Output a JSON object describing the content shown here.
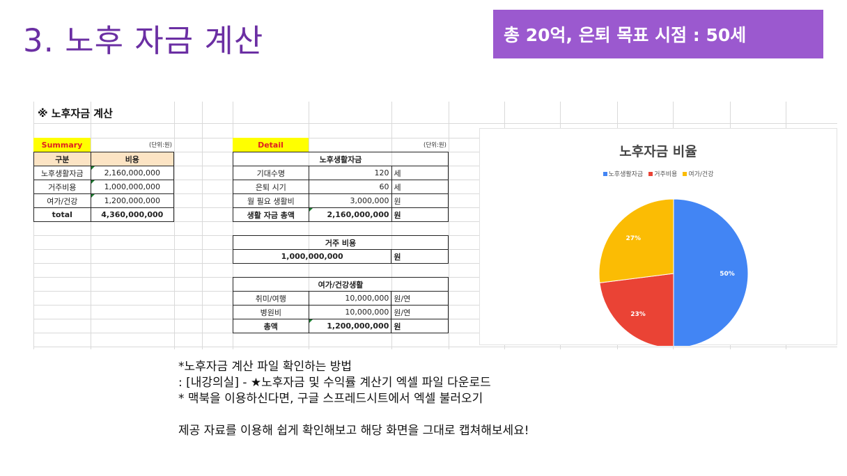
{
  "slide": {
    "title": "3. 노후 자금 계산",
    "badge": "총 20억, 은퇴 목표 시점  : 50세"
  },
  "sheet": {
    "heading": "※ 노후자금 계산",
    "summary": {
      "tag": "Summary",
      "unit": "(단위:원)",
      "headers": [
        "구분",
        "비용"
      ],
      "rows": [
        {
          "label": "노후생활자금",
          "value": "2,160,000,000"
        },
        {
          "label": "거주비용",
          "value": "1,000,000,000"
        },
        {
          "label": "여가/건강",
          "value": "1,200,000,000"
        },
        {
          "label": "total",
          "value": "4,360,000,000"
        }
      ]
    },
    "detail": {
      "tag": "Detail",
      "unit": "(단위:원)",
      "living": {
        "title": "노후생활자금",
        "rows": [
          {
            "label": "기대수명",
            "value": "120",
            "unit": "세"
          },
          {
            "label": "은퇴 시기",
            "value": "60",
            "unit": "세"
          },
          {
            "label": "월 필요 생활비",
            "value": "3,000,000",
            "unit": "원"
          },
          {
            "label": "생활 자금 총액",
            "value": "2,160,000,000",
            "unit": "원"
          }
        ]
      },
      "housing": {
        "title": "거주 비용",
        "value": "1,000,000,000",
        "unit": "원"
      },
      "leisure": {
        "title": "여가/건강생활",
        "rows": [
          {
            "label": "취미/여행",
            "value": "10,000,000",
            "unit": "원/연"
          },
          {
            "label": "병원비",
            "value": "10,000,000",
            "unit": "원/연"
          },
          {
            "label": "총액",
            "value": "1,200,000,000",
            "unit": "원"
          }
        ]
      }
    }
  },
  "chart_data": {
    "type": "pie",
    "title": "노후자금 비율",
    "legend_position": "top",
    "categories": [
      "노후생활자금",
      "거주비용",
      "여가/건강"
    ],
    "values": [
      50,
      23,
      27
    ],
    "labels": [
      "50%",
      "23%",
      "27%"
    ],
    "colors": [
      "#4285f4",
      "#ea4335",
      "#fbbc04"
    ]
  },
  "notes": {
    "line1": "*노후자금 계산 파일 확인하는 방법",
    "line2": ": [내강의실] - ★노후자금 및 수익률 계산기 엑셀 파일 다운로드",
    "line3": "* 맥북을 이용하신다면, 구글 스프레드시트에서 엑셀 불러오기",
    "line4": "제공 자료를 이용해 쉽게 확인해보고 해당 화면을 그대로 캡쳐해보세요!"
  }
}
